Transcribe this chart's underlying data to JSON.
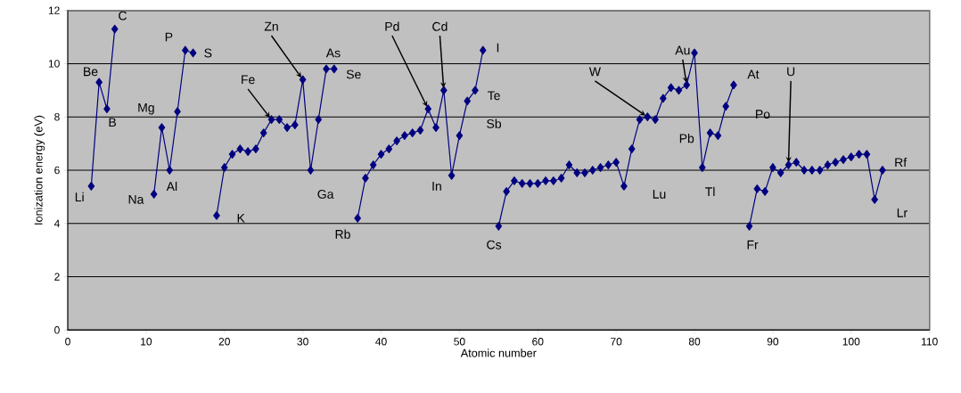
{
  "chart_data": {
    "type": "line",
    "xlabel": "Atomic number",
    "ylabel": "Ionization energy (eV)",
    "x": [
      3,
      4,
      5,
      6,
      7,
      8,
      9,
      10,
      11,
      12,
      13,
      14,
      15,
      16,
      17,
      18,
      19,
      20,
      21,
      22,
      23,
      24,
      25,
      26,
      27,
      28,
      29,
      30,
      31,
      32,
      33,
      34,
      35,
      36,
      37,
      38,
      39,
      40,
      41,
      42,
      43,
      44,
      45,
      46,
      47,
      48,
      49,
      50,
      51,
      52,
      53,
      54,
      55,
      56,
      57,
      58,
      59,
      60,
      61,
      62,
      63,
      64,
      65,
      66,
      67,
      68,
      69,
      70,
      71,
      72,
      73,
      74,
      75,
      76,
      77,
      78,
      79,
      80,
      81,
      82,
      83,
      84,
      85,
      86,
      87,
      88,
      89,
      90,
      91,
      92,
      93,
      94,
      95,
      96,
      97,
      98,
      99,
      100,
      101,
      102,
      103,
      104
    ],
    "values": [
      5.4,
      9.3,
      8.3,
      11.3,
      null,
      null,
      null,
      null,
      5.1,
      7.6,
      6.0,
      8.2,
      10.5,
      10.4,
      null,
      null,
      4.3,
      6.1,
      6.6,
      6.8,
      6.7,
      6.8,
      7.4,
      7.9,
      7.9,
      7.6,
      7.7,
      9.4,
      6.0,
      7.9,
      9.8,
      9.8,
      null,
      null,
      4.2,
      5.7,
      6.2,
      6.6,
      6.8,
      7.1,
      7.3,
      7.4,
      7.5,
      8.3,
      7.6,
      9.0,
      5.8,
      7.3,
      8.6,
      9.0,
      10.5,
      null,
      3.9,
      5.2,
      5.6,
      5.5,
      5.5,
      5.5,
      5.6,
      5.6,
      5.7,
      6.2,
      5.9,
      5.9,
      6.0,
      6.1,
      6.2,
      6.3,
      5.4,
      6.8,
      7.9,
      8.0,
      7.9,
      8.7,
      9.1,
      9.0,
      9.2,
      10.4,
      6.1,
      7.4,
      7.3,
      8.4,
      9.2,
      null,
      3.9,
      5.3,
      5.2,
      6.1,
      5.9,
      6.2,
      6.3,
      6.0,
      6.0,
      6.0,
      6.2,
      6.3,
      6.4,
      6.5,
      6.6,
      6.6,
      4.9,
      6.0
    ],
    "color": "#000080",
    "marker": "diamond",
    "line_style": "solid",
    "grid": "y",
    "xlim": [
      0,
      110
    ],
    "ylim": [
      0,
      12
    ],
    "xticks": [
      0,
      10,
      20,
      30,
      40,
      50,
      60,
      70,
      80,
      90,
      100,
      110
    ],
    "yticks": [
      0,
      2,
      4,
      6,
      8,
      10,
      12
    ],
    "annotations": [
      {
        "text": "Li",
        "x": 3,
        "y": 5.4
      },
      {
        "text": "Be",
        "x": 4,
        "y": 9.3
      },
      {
        "text": "B",
        "x": 5,
        "y": 8.3
      },
      {
        "text": "C",
        "x": 6,
        "y": 11.3
      },
      {
        "text": "Na",
        "x": 11,
        "y": 5.1
      },
      {
        "text": "Mg",
        "x": 12,
        "y": 7.6
      },
      {
        "text": "Al",
        "x": 13,
        "y": 6.0
      },
      {
        "text": "P",
        "x": 15,
        "y": 10.5
      },
      {
        "text": "S",
        "x": 16,
        "y": 10.4
      },
      {
        "text": "Fe",
        "x": 26,
        "y": 7.9
      },
      {
        "text": "Zn",
        "x": 30,
        "y": 9.4
      },
      {
        "text": "As",
        "x": 33,
        "y": 9.8
      },
      {
        "text": "Se",
        "x": 34,
        "y": 9.8
      },
      {
        "text": "K",
        "x": 19,
        "y": 4.3
      },
      {
        "text": "Ga",
        "x": 31,
        "y": 6.0
      },
      {
        "text": "Rb",
        "x": 37,
        "y": 4.2
      },
      {
        "text": "Pd",
        "x": 46,
        "y": 8.3
      },
      {
        "text": "Cd",
        "x": 48,
        "y": 9.0
      },
      {
        "text": "I",
        "x": 53,
        "y": 10.5
      },
      {
        "text": "Te",
        "x": 52,
        "y": 9.0
      },
      {
        "text": "Sb",
        "x": 51,
        "y": 8.6
      },
      {
        "text": "In",
        "x": 49,
        "y": 5.8
      },
      {
        "text": "Cs",
        "x": 55,
        "y": 3.9
      },
      {
        "text": "W",
        "x": 74,
        "y": 8.0
      },
      {
        "text": "Lu",
        "x": 71,
        "y": 5.4
      },
      {
        "text": "Au",
        "x": 79,
        "y": 9.2
      },
      {
        "text": "Pb",
        "x": 82,
        "y": 7.4
      },
      {
        "text": "Tl",
        "x": 81,
        "y": 6.1
      },
      {
        "text": "At",
        "x": 85,
        "y": 9.2
      },
      {
        "text": "Po",
        "x": 84,
        "y": 8.4
      },
      {
        "text": "U",
        "x": 92,
        "y": 6.2
      },
      {
        "text": "Fr",
        "x": 87,
        "y": 3.9
      },
      {
        "text": "Rf",
        "x": 104,
        "y": 6.0
      },
      {
        "text": "Lr",
        "x": 103,
        "y": 4.9
      }
    ]
  }
}
